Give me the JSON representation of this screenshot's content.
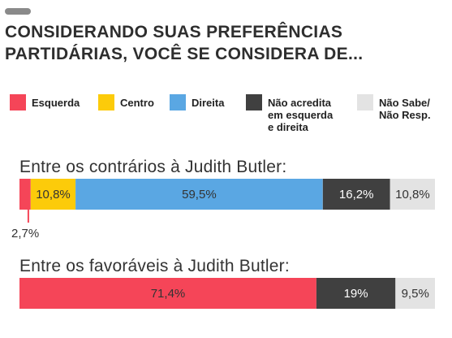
{
  "header": {
    "title_line1": "CONSIDERANDO SUAS PREFERÊNCIAS",
    "title_line2": "PARTIDÁRIAS, VOCÊ SE CONSIDERA DE..."
  },
  "legend": [
    {
      "label": "Esquerda",
      "color": "#f54558"
    },
    {
      "label": "Centro",
      "color": "#fccb0a"
    },
    {
      "label": "Direita",
      "color": "#5aa7e3"
    },
    {
      "label": "Não acredita\nem esquerda\ne direita",
      "color": "#404040"
    },
    {
      "label": "Não Sabe/\nNão Resp.",
      "color": "#e3e3e3"
    }
  ],
  "chart_data": {
    "type": "bar",
    "stacked": true,
    "orientation": "horizontal",
    "categories": [
      "Entre os contrários à Judith Butler:",
      "Entre os favoráveis à Judith Butler:"
    ],
    "series": [
      {
        "name": "Esquerda",
        "values": [
          2.7,
          71.4
        ],
        "labels": [
          "2,7%",
          "71,4%"
        ],
        "color": "#f54558"
      },
      {
        "name": "Centro",
        "values": [
          10.8,
          0
        ],
        "labels": [
          "10,8%",
          ""
        ],
        "color": "#fccb0a"
      },
      {
        "name": "Direita",
        "values": [
          59.5,
          0
        ],
        "labels": [
          "59,5%",
          ""
        ],
        "color": "#5aa7e3"
      },
      {
        "name": "Não acredita em esquerda e direita",
        "values": [
          16.2,
          19
        ],
        "labels": [
          "16,2%",
          "19%"
        ],
        "color": "#404040"
      },
      {
        "name": "Não Sabe/Não Resp.",
        "values": [
          10.8,
          9.5
        ],
        "labels": [
          "10,8%",
          "9,5%"
        ],
        "color": "#e3e3e3"
      }
    ]
  }
}
